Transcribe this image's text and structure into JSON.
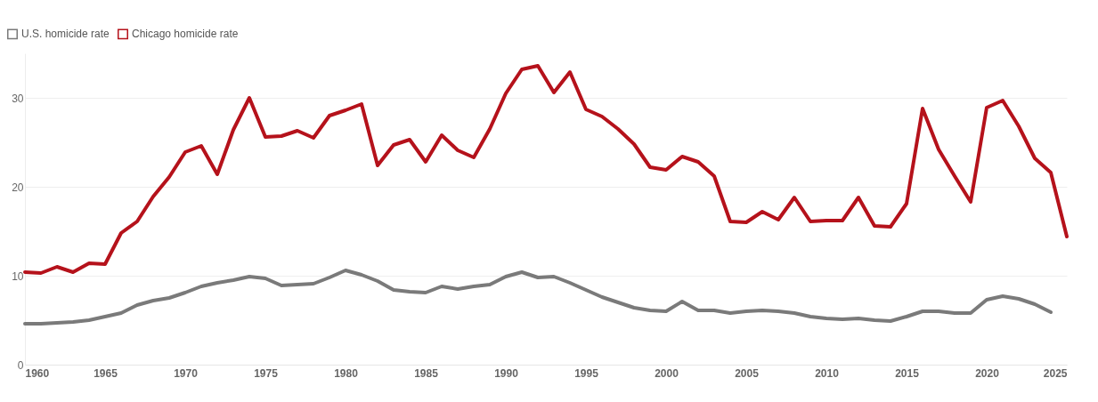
{
  "chart_data": {
    "type": "line",
    "x": [
      1960,
      1961,
      1962,
      1963,
      1964,
      1965,
      1966,
      1967,
      1968,
      1969,
      1970,
      1971,
      1972,
      1973,
      1974,
      1975,
      1976,
      1977,
      1978,
      1979,
      1980,
      1981,
      1982,
      1983,
      1984,
      1985,
      1986,
      1987,
      1988,
      1989,
      1990,
      1991,
      1992,
      1993,
      1994,
      1995,
      1996,
      1997,
      1998,
      1999,
      2000,
      2001,
      2002,
      2003,
      2004,
      2005,
      2006,
      2007,
      2008,
      2009,
      2010,
      2011,
      2012,
      2013,
      2014,
      2015,
      2016,
      2017,
      2018,
      2019,
      2020,
      2021,
      2022,
      2023,
      2024,
      2025
    ],
    "series": [
      {
        "name": "U.S. homicide rate",
        "color": "#7a7a7a",
        "values": [
          4.6,
          4.6,
          4.7,
          4.8,
          5.0,
          5.4,
          5.8,
          6.7,
          7.2,
          7.5,
          8.1,
          8.8,
          9.2,
          9.5,
          9.9,
          9.7,
          8.9,
          9.0,
          9.1,
          9.8,
          10.6,
          10.1,
          9.4,
          8.4,
          8.2,
          8.1,
          8.8,
          8.5,
          8.8,
          9.0,
          9.9,
          10.4,
          9.8,
          9.9,
          9.2,
          8.4,
          7.6,
          7.0,
          6.4,
          6.1,
          6.0,
          7.1,
          6.1,
          6.1,
          5.8,
          6.0,
          6.1,
          6.0,
          5.8,
          5.4,
          5.2,
          5.1,
          5.2,
          5.0,
          4.9,
          5.4,
          6.0,
          6.0,
          5.8,
          5.8,
          7.3,
          7.7,
          7.4,
          6.8,
          5.9,
          null
        ]
      },
      {
        "name": "Chicago homicide rate",
        "color": "#b5121b",
        "values": [
          10.4,
          10.3,
          11.0,
          10.4,
          11.4,
          11.3,
          14.8,
          16.1,
          18.9,
          21.1,
          23.9,
          24.6,
          21.4,
          26.4,
          30.0,
          25.6,
          25.7,
          26.3,
          25.5,
          28.0,
          28.6,
          29.3,
          22.4,
          24.7,
          25.3,
          22.8,
          25.8,
          24.1,
          23.3,
          26.5,
          30.5,
          33.2,
          33.6,
          30.6,
          32.9,
          28.7,
          27.9,
          26.5,
          24.8,
          22.2,
          21.9,
          23.4,
          22.8,
          21.2,
          16.1,
          16.0,
          17.2,
          16.3,
          18.8,
          16.1,
          16.2,
          16.2,
          18.8,
          15.6,
          15.5,
          18.1,
          28.8,
          24.2,
          21.2,
          18.3,
          28.9,
          29.7,
          26.8,
          23.2,
          21.6,
          14.4
        ]
      }
    ],
    "xlim": [
      1960,
      2025
    ],
    "xticks": [
      1960,
      1965,
      1970,
      1975,
      1980,
      1985,
      1990,
      1995,
      2000,
      2005,
      2010,
      2015,
      2020,
      2025
    ],
    "ylim": [
      0,
      35
    ],
    "yticks": [
      0,
      10,
      20,
      30
    ],
    "grid": "y",
    "legend": "top left",
    "marker": "none",
    "line_style": "solid"
  }
}
